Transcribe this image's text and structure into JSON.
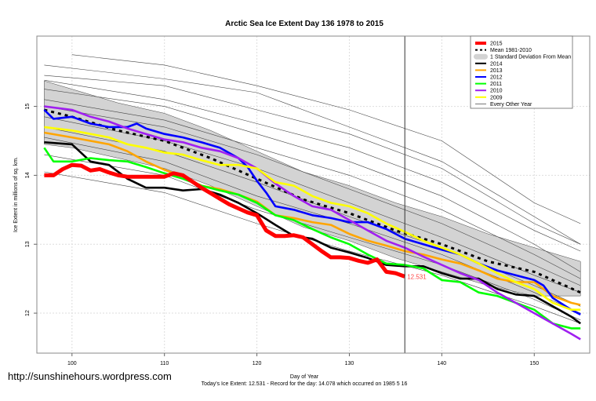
{
  "chart_data": {
    "type": "line",
    "title": "Arctic Sea Ice Extent Day 136 1978 to 2015",
    "xlabel": "Day of Year",
    "ylabel": "Ice Extent in millions of sq. km.",
    "xlim": [
      96.2,
      156
    ],
    "ylim": [
      11.42,
      16.02
    ],
    "x_ticks": [
      100,
      110,
      120,
      130,
      140,
      150
    ],
    "y_ticks": [
      12,
      13,
      14,
      15
    ],
    "grid": true,
    "legend_position": "top-right",
    "current_day": 136,
    "current_value_label": "12.531",
    "footer": "Today's Ice Extent: 12.531  - Record for the day: 14.078 which occurred on 1985 5 16",
    "watermark": "http://sunshinehours.wordpress.com",
    "legend": [
      {
        "label": "2015",
        "color": "#ff0000",
        "style": "thick"
      },
      {
        "label": "Mean 1981-2010",
        "color": "#000000",
        "style": "dashed"
      },
      {
        "label": "1 Standard Deviation From Mean",
        "color": "#d3d3d3",
        "style": "band"
      },
      {
        "label": "2014",
        "color": "#000000",
        "style": "line"
      },
      {
        "label": "2013",
        "color": "#ffa500",
        "style": "line"
      },
      {
        "label": "2012",
        "color": "#0000ff",
        "style": "line"
      },
      {
        "label": "2011",
        "color": "#00ff00",
        "style": "line"
      },
      {
        "label": "2010",
        "color": "#a020f0",
        "style": "line"
      },
      {
        "label": "2009",
        "color": "#ffff00",
        "style": "line"
      },
      {
        "label": "Every Other Year",
        "color": "#555555",
        "style": "thin"
      }
    ],
    "sd_band": {
      "x": [
        97,
        100,
        105,
        110,
        115,
        120,
        125,
        130,
        135,
        140,
        145,
        150,
        155
      ],
      "upper": [
        15.37,
        15.25,
        15.05,
        14.9,
        14.65,
        14.35,
        14.05,
        13.85,
        13.6,
        13.4,
        13.15,
        12.95,
        12.75
      ],
      "lower": [
        14.45,
        14.4,
        14.25,
        14.1,
        13.85,
        13.55,
        13.25,
        13.05,
        12.8,
        12.6,
        12.4,
        12.25,
        12.25
      ]
    },
    "mean": {
      "x": [
        97,
        100,
        105,
        110,
        115,
        120,
        125,
        130,
        135,
        140,
        145,
        150,
        155
      ],
      "y": [
        14.95,
        14.85,
        14.65,
        14.5,
        14.25,
        13.95,
        13.65,
        13.45,
        13.2,
        13.0,
        12.75,
        12.6,
        12.3
      ]
    },
    "other_years": [
      {
        "x": [
          100,
          110,
          120,
          130,
          140,
          150,
          155
        ],
        "y": [
          15.75,
          15.6,
          15.3,
          14.95,
          14.5,
          13.6,
          13.3
        ]
      },
      {
        "x": [
          97,
          110,
          120,
          130,
          140,
          150,
          155
        ],
        "y": [
          15.6,
          15.4,
          15.2,
          14.7,
          14.2,
          13.4,
          13.0
        ]
      },
      {
        "x": [
          97,
          110,
          120,
          130,
          140,
          150,
          155
        ],
        "y": [
          15.45,
          15.3,
          14.95,
          14.6,
          14.1,
          13.3,
          13.0
        ]
      },
      {
        "x": [
          97,
          110,
          120,
          130,
          140,
          150,
          155
        ],
        "y": [
          15.38,
          15.1,
          14.75,
          14.4,
          13.9,
          13.2,
          12.9
        ]
      },
      {
        "x": [
          97,
          110,
          120,
          130,
          140,
          150,
          155
        ],
        "y": [
          15.25,
          15.0,
          14.6,
          14.2,
          13.7,
          13.0,
          12.6
        ]
      },
      {
        "x": [
          97,
          110,
          120,
          130,
          140,
          150,
          155
        ],
        "y": [
          15.1,
          14.8,
          14.4,
          14.0,
          13.5,
          12.85,
          12.5
        ]
      },
      {
        "x": [
          97,
          110,
          120,
          130,
          140,
          150,
          155
        ],
        "y": [
          15.0,
          14.7,
          14.3,
          13.8,
          13.3,
          12.7,
          12.4
        ]
      },
      {
        "x": [
          97,
          110,
          120,
          130,
          140,
          150,
          155
        ],
        "y": [
          14.85,
          14.5,
          14.1,
          13.6,
          13.1,
          12.55,
          12.3
        ]
      },
      {
        "x": [
          97,
          110,
          120,
          130,
          140,
          150,
          155
        ],
        "y": [
          14.7,
          14.35,
          13.9,
          13.4,
          12.95,
          12.4,
          12.1
        ]
      },
      {
        "x": [
          97,
          110,
          120,
          130,
          140,
          150,
          155
        ],
        "y": [
          14.55,
          14.2,
          13.7,
          13.3,
          12.85,
          12.3,
          12.0
        ]
      },
      {
        "x": [
          97,
          110,
          120,
          130,
          140,
          150,
          155
        ],
        "y": [
          14.3,
          14.0,
          13.5,
          13.1,
          12.7,
          12.2,
          11.9
        ]
      },
      {
        "x": [
          97,
          110,
          120,
          130,
          140,
          150,
          155
        ],
        "y": [
          14.05,
          13.75,
          13.3,
          12.9,
          12.55,
          12.1,
          11.85
        ]
      }
    ],
    "series": [
      {
        "name": "2014",
        "color": "#000000",
        "x": [
          97,
          100,
          102,
          104,
          106,
          108,
          110,
          112,
          114,
          116,
          118,
          120,
          122,
          124,
          126,
          128,
          130,
          132,
          134,
          136,
          138,
          140,
          142,
          144,
          146,
          148,
          150,
          152,
          154,
          155
        ],
        "y": [
          14.48,
          14.45,
          14.2,
          14.15,
          13.95,
          13.82,
          13.82,
          13.78,
          13.8,
          13.72,
          13.6,
          13.45,
          13.28,
          13.12,
          13.08,
          12.95,
          12.88,
          12.8,
          12.7,
          12.68,
          12.68,
          12.58,
          12.5,
          12.5,
          12.35,
          12.27,
          12.25,
          12.1,
          11.95,
          11.85
        ]
      },
      {
        "name": "2013",
        "color": "#ffa500",
        "x": [
          97,
          100,
          102,
          104,
          106,
          108,
          110,
          112,
          114,
          116,
          118,
          120,
          122,
          124,
          126,
          128,
          130,
          132,
          134,
          136,
          138,
          140,
          142,
          144,
          146,
          148,
          150,
          152,
          154,
          155
        ],
        "y": [
          14.62,
          14.55,
          14.5,
          14.45,
          14.35,
          14.2,
          14.08,
          13.98,
          13.85,
          13.8,
          13.72,
          13.62,
          13.42,
          13.38,
          13.32,
          13.28,
          13.15,
          13.05,
          12.98,
          12.9,
          12.85,
          12.78,
          12.72,
          12.62,
          12.5,
          12.45,
          12.45,
          12.25,
          12.15,
          12.12
        ]
      },
      {
        "name": "2012",
        "color": "#0000ff",
        "x": [
          97,
          98,
          100,
          102,
          104,
          106,
          107,
          108,
          110,
          112,
          114,
          116,
          118,
          119,
          120,
          121,
          122,
          124,
          126,
          128,
          130,
          132,
          134,
          136,
          138,
          140,
          142,
          144,
          146,
          148,
          150,
          151,
          152,
          154,
          155
        ],
        "y": [
          14.95,
          14.82,
          14.85,
          14.75,
          14.7,
          14.7,
          14.75,
          14.68,
          14.6,
          14.55,
          14.48,
          14.4,
          14.25,
          14.12,
          13.92,
          13.75,
          13.55,
          13.5,
          13.42,
          13.38,
          13.32,
          13.32,
          13.22,
          13.08,
          13.0,
          12.92,
          12.85,
          12.72,
          12.62,
          12.55,
          12.48,
          12.4,
          12.22,
          12.05,
          11.98
        ]
      },
      {
        "name": "2011",
        "color": "#00ff00",
        "x": [
          97,
          98,
          100,
          102,
          104,
          106,
          108,
          110,
          112,
          114,
          116,
          118,
          120,
          122,
          124,
          126,
          128,
          130,
          132,
          134,
          136,
          138,
          140,
          142,
          144,
          146,
          148,
          150,
          152,
          154,
          155
        ],
        "y": [
          14.4,
          14.2,
          14.2,
          14.25,
          14.22,
          14.2,
          14.12,
          14.03,
          13.95,
          13.85,
          13.78,
          13.72,
          13.6,
          13.42,
          13.35,
          13.22,
          13.1,
          13.0,
          12.85,
          12.72,
          12.7,
          12.65,
          12.48,
          12.45,
          12.3,
          12.25,
          12.15,
          12.05,
          11.85,
          11.78,
          11.78
        ]
      },
      {
        "name": "2010",
        "color": "#a020f0",
        "x": [
          97,
          100,
          102,
          104,
          106,
          108,
          110,
          112,
          114,
          116,
          118,
          120,
          122,
          124,
          126,
          128,
          130,
          132,
          134,
          136,
          138,
          140,
          142,
          144,
          146,
          148,
          150,
          152,
          154,
          155
        ],
        "y": [
          15.0,
          14.95,
          14.85,
          14.78,
          14.68,
          14.6,
          14.52,
          14.48,
          14.4,
          14.35,
          14.25,
          14.1,
          13.88,
          13.7,
          13.55,
          13.5,
          13.35,
          13.2,
          13.05,
          12.95,
          12.82,
          12.7,
          12.58,
          12.48,
          12.3,
          12.15,
          12.0,
          11.85,
          11.7,
          11.62
        ]
      },
      {
        "name": "2009",
        "color": "#ffff00",
        "x": [
          97,
          100,
          102,
          104,
          106,
          108,
          110,
          112,
          114,
          116,
          118,
          120,
          122,
          124,
          126,
          128,
          130,
          132,
          134,
          136,
          138,
          140,
          142,
          144,
          146,
          148,
          150,
          152,
          154,
          155
        ],
        "y": [
          14.7,
          14.65,
          14.6,
          14.55,
          14.45,
          14.4,
          14.33,
          14.3,
          14.22,
          14.15,
          14.15,
          14.1,
          13.9,
          13.85,
          13.7,
          13.6,
          13.55,
          13.45,
          13.3,
          13.18,
          13.05,
          12.95,
          12.85,
          12.72,
          12.58,
          12.45,
          12.35,
          12.15,
          12.05,
          12.05
        ]
      },
      {
        "name": "2015",
        "color": "#ff0000",
        "x": [
          97,
          98,
          99,
          100,
          101,
          102,
          103,
          104,
          105,
          106,
          108,
          110,
          111,
          112,
          113,
          114,
          115,
          116,
          117,
          118,
          119,
          120,
          121,
          122,
          123,
          124,
          125,
          126,
          127,
          128,
          129,
          130,
          131,
          132,
          133,
          134,
          135,
          136
        ],
        "y": [
          14.0,
          14.0,
          14.09,
          14.15,
          14.14,
          14.07,
          14.09,
          14.04,
          14.0,
          13.98,
          13.98,
          13.98,
          14.03,
          14.0,
          13.91,
          13.82,
          13.74,
          13.66,
          13.58,
          13.52,
          13.46,
          13.42,
          13.2,
          13.12,
          13.12,
          13.13,
          13.1,
          13.0,
          12.9,
          12.81,
          12.81,
          12.8,
          12.76,
          12.73,
          12.78,
          12.6,
          12.58,
          12.531
        ]
      }
    ]
  }
}
